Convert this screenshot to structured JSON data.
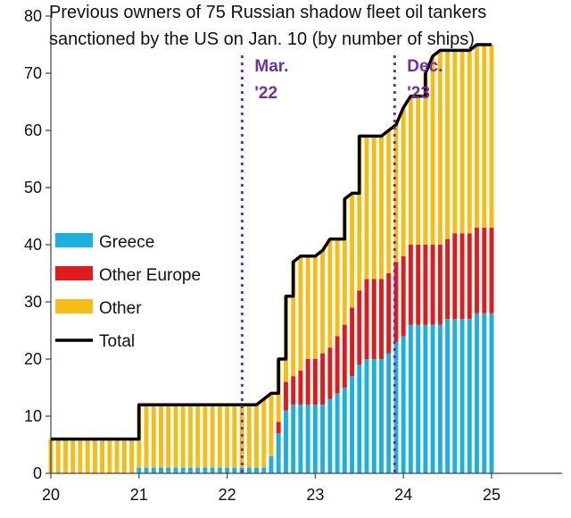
{
  "chart_data": {
    "type": "bar",
    "stacked": true,
    "title_lines": [
      "Previous owners of 75 Russian shadow fleet oil tankers",
      "sanctioned by the US on Jan. 10 (by number of ships)"
    ],
    "xlabel": "",
    "ylabel": "",
    "xlim": [
      20,
      25.8
    ],
    "ylim": [
      0,
      80
    ],
    "y_ticks": [
      0,
      10,
      20,
      30,
      40,
      50,
      60,
      70,
      80
    ],
    "x_ticks": [
      20,
      21,
      22,
      23,
      24,
      25
    ],
    "x_tick_labels": [
      "20",
      "21",
      "22",
      "23",
      "24",
      "25"
    ],
    "grid": false,
    "legend_position": "left",
    "colors": {
      "greece": "#1cb0e0",
      "other_europe": "#e01b1b",
      "other": "#f6bd18",
      "total": "#000000",
      "annotation": "#7030a0"
    },
    "x": [
      20.0,
      20.083,
      20.167,
      20.25,
      20.333,
      20.417,
      20.5,
      20.583,
      20.667,
      20.75,
      20.833,
      20.917,
      21.0,
      21.083,
      21.167,
      21.25,
      21.333,
      21.417,
      21.5,
      21.583,
      21.667,
      21.75,
      21.833,
      21.917,
      22.0,
      22.083,
      22.167,
      22.25,
      22.333,
      22.417,
      22.5,
      22.583,
      22.667,
      22.75,
      22.833,
      22.917,
      23.0,
      23.083,
      23.167,
      23.25,
      23.333,
      23.417,
      23.5,
      23.583,
      23.667,
      23.75,
      23.833,
      23.917,
      24.0,
      24.083,
      24.167,
      24.25,
      24.333,
      24.417,
      24.5,
      24.583,
      24.667,
      24.75,
      24.833,
      24.917,
      25.0
    ],
    "series": [
      {
        "name": "Greece",
        "key": "greece",
        "values": [
          0,
          0,
          0,
          0,
          0,
          0,
          0,
          0,
          0,
          0,
          0,
          0,
          1,
          1,
          1,
          1,
          1,
          1,
          1,
          1,
          1,
          1,
          1,
          1,
          1,
          1,
          1,
          1,
          1,
          1,
          3,
          7,
          11,
          12,
          12,
          12,
          12,
          12,
          13,
          14,
          15,
          17,
          19,
          20,
          20,
          20,
          21,
          23,
          24,
          26,
          26,
          26,
          26,
          26,
          27,
          27,
          27,
          27,
          28,
          28,
          28
        ]
      },
      {
        "name": "Other Europe",
        "key": "other_europe",
        "values": [
          0,
          0,
          0,
          0,
          0,
          0,
          0,
          0,
          0,
          0,
          0,
          0,
          0,
          0,
          0,
          0,
          0,
          0,
          0,
          0,
          0,
          0,
          0,
          0,
          0,
          0,
          0,
          0,
          0,
          0,
          0,
          2,
          5,
          5,
          6,
          8,
          8,
          9,
          9,
          10,
          11,
          12,
          13,
          14,
          14,
          14,
          14,
          14,
          14,
          14,
          14,
          14,
          14,
          14,
          14,
          15,
          15,
          15,
          15,
          15,
          15
        ]
      },
      {
        "name": "Other",
        "key": "other",
        "values": [
          6,
          6,
          6,
          6,
          6,
          6,
          6,
          6,
          6,
          6,
          6,
          6,
          11,
          11,
          11,
          11,
          11,
          11,
          11,
          11,
          11,
          11,
          11,
          11,
          11,
          11,
          11,
          11,
          11,
          12,
          11,
          11,
          15,
          20,
          20,
          18,
          18,
          18,
          19,
          17,
          22,
          20,
          27,
          25,
          25,
          25,
          25,
          24,
          26,
          26,
          26,
          30,
          33,
          34,
          33,
          32,
          32,
          32,
          32,
          32,
          32
        ]
      }
    ],
    "total": {
      "name": "Total",
      "values": [
        6,
        6,
        6,
        6,
        6,
        6,
        6,
        6,
        6,
        6,
        6,
        6,
        12,
        12,
        12,
        12,
        12,
        12,
        12,
        12,
        12,
        12,
        12,
        12,
        12,
        12,
        12,
        12,
        12,
        13,
        14,
        20,
        31,
        37,
        38,
        38,
        38,
        39,
        41,
        41,
        48,
        49,
        59,
        59,
        59,
        59,
        60,
        61,
        64,
        66,
        66,
        70,
        73,
        74,
        74,
        74,
        74,
        74,
        75,
        75,
        75
      ]
    },
    "annotations": [
      {
        "key": "mar22",
        "x": 22.17,
        "lines": [
          "Mar.",
          "'22"
        ]
      },
      {
        "key": "dec23",
        "x": 23.9,
        "lines": [
          "Dec.",
          "'23"
        ]
      }
    ]
  }
}
